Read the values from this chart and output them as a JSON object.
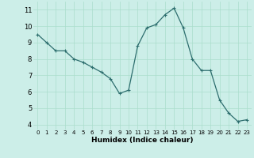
{
  "x": [
    0,
    1,
    2,
    3,
    4,
    5,
    6,
    7,
    8,
    9,
    10,
    11,
    12,
    13,
    14,
    15,
    16,
    17,
    18,
    19,
    20,
    21,
    22,
    23
  ],
  "y": [
    9.5,
    9.0,
    8.5,
    8.5,
    8.0,
    7.8,
    7.5,
    7.2,
    6.8,
    5.9,
    6.1,
    8.8,
    9.9,
    10.1,
    10.7,
    11.1,
    9.9,
    8.0,
    7.3,
    7.3,
    5.5,
    4.7,
    4.2,
    4.3
  ],
  "line_color": "#2d6e6e",
  "marker": "+",
  "marker_size": 3,
  "marker_lw": 0.8,
  "line_width": 0.9,
  "bg_color": "#cceee8",
  "grid_color": "#aaddcc",
  "xlabel": "Humidex (Indice chaleur)",
  "xlabel_fontsize": 6.5,
  "ytick_fontsize": 6,
  "xtick_fontsize": 5,
  "ylabel_ticks": [
    4,
    5,
    6,
    7,
    8,
    9,
    10,
    11
  ],
  "xtick_labels": [
    "0",
    "1",
    "2",
    "3",
    "4",
    "5",
    "6",
    "7",
    "8",
    "9",
    "10",
    "11",
    "12",
    "13",
    "14",
    "15",
    "16",
    "17",
    "18",
    "19",
    "20",
    "21",
    "22",
    "23"
  ],
  "xlim": [
    -0.5,
    23.5
  ],
  "ylim": [
    3.7,
    11.5
  ]
}
